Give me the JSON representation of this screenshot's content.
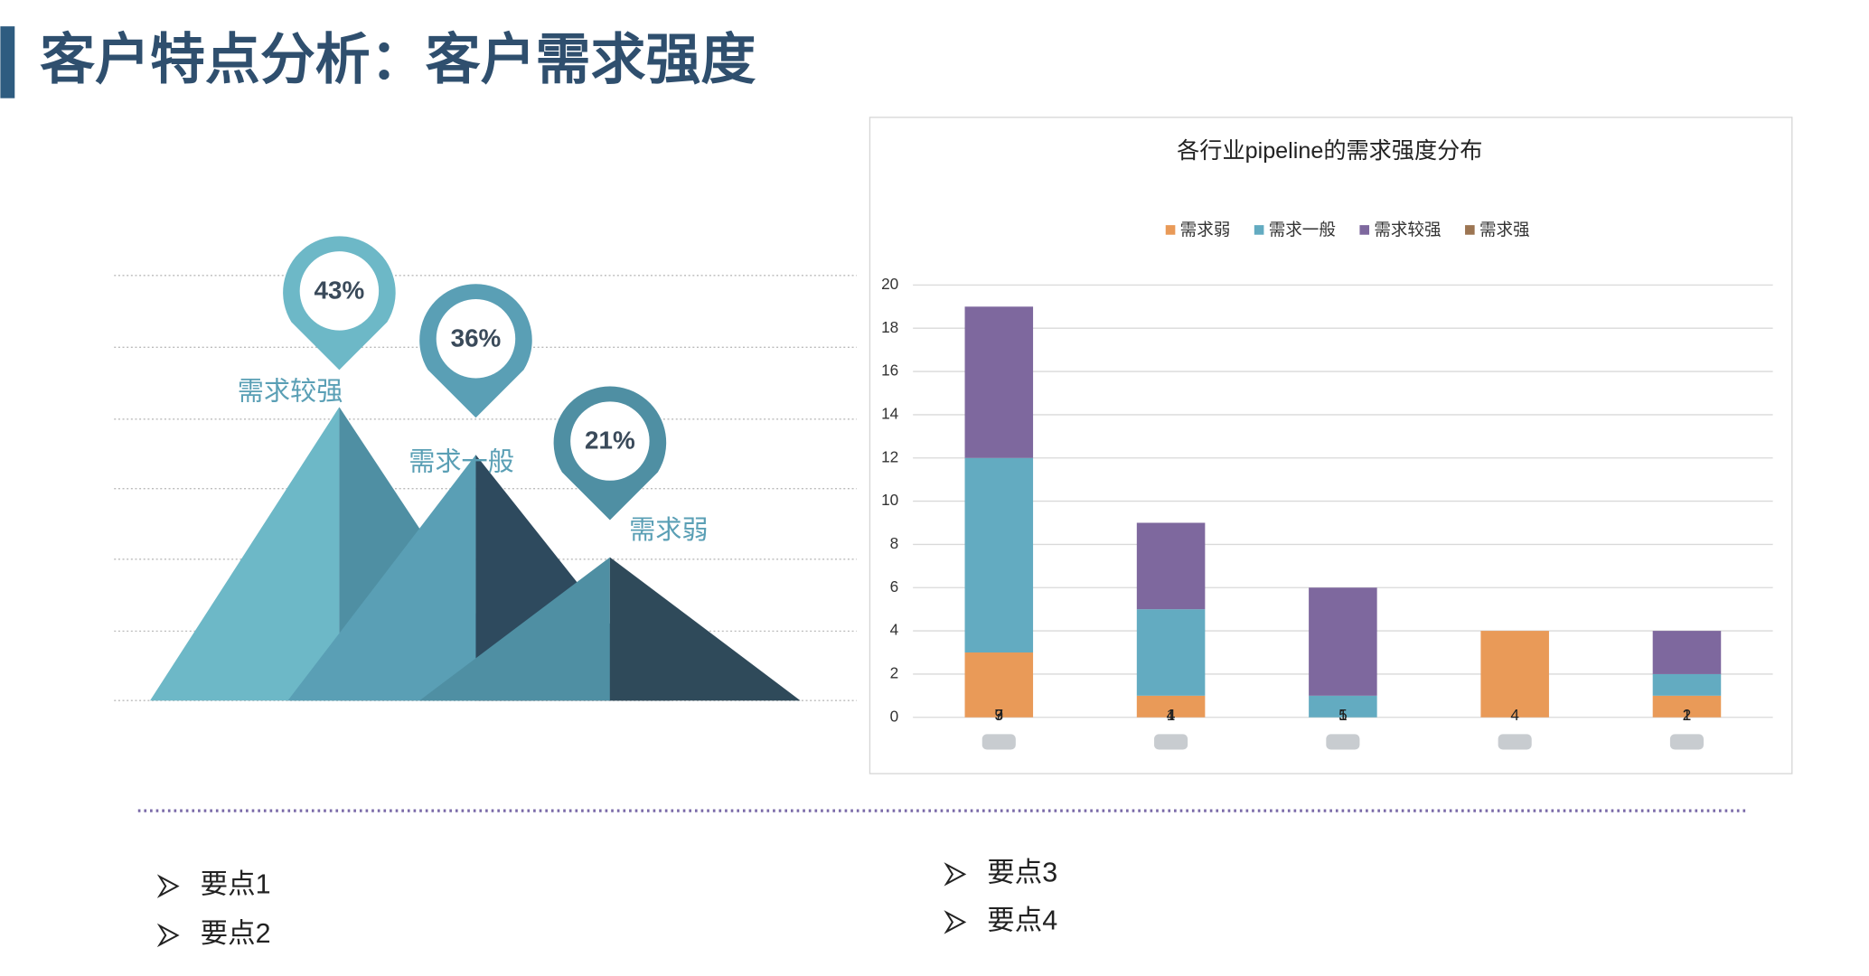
{
  "title": "客户特点分析：客户需求强度",
  "infographic": {
    "items": [
      {
        "label": "需求较强",
        "value": 43,
        "value_label": "43%"
      },
      {
        "label": "需求一般",
        "value": 36,
        "value_label": "36%"
      },
      {
        "label": "需求弱",
        "value": 21,
        "value_label": "21%"
      }
    ]
  },
  "chart_data": {
    "type": "stacked_bar",
    "title": "各行业pipeline的需求强度分布",
    "categories": [
      null,
      null,
      null,
      null,
      null
    ],
    "series": [
      {
        "name": "需求弱",
        "color": "#e99a58",
        "values": [
          3,
          1,
          0,
          4,
          1
        ]
      },
      {
        "name": "需求一般",
        "color": "#63abc1",
        "values": [
          9,
          4,
          1,
          0,
          1
        ]
      },
      {
        "name": "需求较强",
        "color": "#7e689e",
        "values": [
          7,
          4,
          5,
          0,
          2
        ]
      },
      {
        "name": "需求强",
        "color": "#9c7552",
        "values": [
          0,
          0,
          0,
          0,
          0
        ]
      }
    ],
    "ylim": [
      0,
      20
    ],
    "yticks": [
      0,
      2,
      4,
      6,
      8,
      10,
      12,
      14,
      16,
      18,
      20
    ],
    "grid": true,
    "legend": "top"
  },
  "bullets": [
    "要点1",
    "要点2",
    "要点3",
    "要点4"
  ]
}
